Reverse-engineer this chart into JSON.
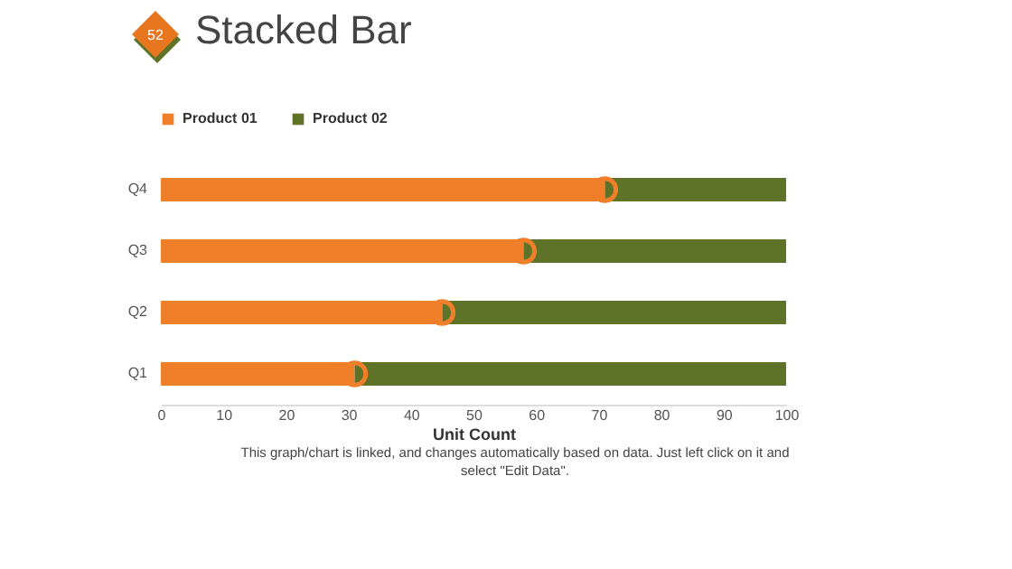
{
  "chart_data": {
    "type": "bar",
    "orientation": "horizontal",
    "stacked": true,
    "title": "Stacked Bar",
    "xlabel": "Unit Count",
    "categories": [
      "Q4",
      "Q3",
      "Q2",
      "Q1"
    ],
    "series": [
      {
        "name": "Product 01",
        "color": "#f07f29",
        "values": [
          71,
          58,
          45,
          31
        ]
      },
      {
        "name": "Product 02",
        "color": "#5f7328",
        "values": [
          29,
          42,
          55,
          69
        ]
      },
      {
        "type": "scatter",
        "color": "#f07f29",
        "x": [
          "Q4",
          "Q3",
          "Q2",
          "Q1"
        ],
        "values": [
          71,
          58,
          45,
          31
        ]
      }
    ],
    "xlim": [
      0,
      100
    ],
    "xticks": [
      0,
      10,
      20,
      30,
      40,
      50,
      60,
      70,
      80,
      90,
      100
    ],
    "legend": "top",
    "marker": "circle",
    "grid": false,
    "annotations": [
      "52",
      "This graph/chart is linked, and changes automatically based on data. Just left click on it and select \"Edit Data\"."
    ]
  }
}
